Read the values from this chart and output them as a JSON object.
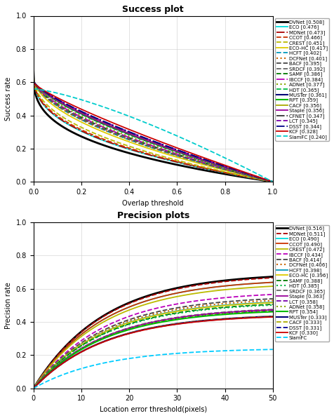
{
  "success_title": "Success plot",
  "success_xlabel": "Overlap threshold",
  "success_ylabel": "Success rate",
  "precision_title": "Precision plots",
  "precision_xlabel": "Location error threshold(pixels)",
  "precision_ylabel": "Precision rate",
  "success_trackers": [
    {
      "name": "DVNet [0.508]",
      "color": "#000000",
      "ls": "-",
      "lw": 2.0,
      "auc": 0.508
    },
    {
      "name": "ECO [0.476]",
      "color": "#00DDDD",
      "ls": "-",
      "lw": 1.3,
      "auc": 0.476
    },
    {
      "name": "MDNet [0.473]",
      "color": "#AA0000",
      "ls": "-.",
      "lw": 1.3,
      "auc": 0.473
    },
    {
      "name": "CCOT [0.466]",
      "color": "#CC3300",
      "ls": "--",
      "lw": 1.3,
      "auc": 0.466
    },
    {
      "name": "CREST [0.451]",
      "color": "#BBBB00",
      "ls": "--",
      "lw": 1.3,
      "auc": 0.451
    },
    {
      "name": "ECO-HC [0.417]",
      "color": "#DDCC00",
      "ls": "-",
      "lw": 1.3,
      "auc": 0.417
    },
    {
      "name": "HCFT [0.402]",
      "color": "#0099BB",
      "ls": "--",
      "lw": 1.3,
      "auc": 0.402
    },
    {
      "name": "DCFNet [0.401]",
      "color": "#CC6600",
      "ls": ":",
      "lw": 1.5,
      "auc": 0.401
    },
    {
      "name": "BACF [0.395]",
      "color": "#444444",
      "ls": "--",
      "lw": 1.3,
      "auc": 0.395
    },
    {
      "name": "SRDCF [0.392]",
      "color": "#666666",
      "ls": "--",
      "lw": 1.3,
      "auc": 0.392
    },
    {
      "name": "SAMF [0.386]",
      "color": "#007700",
      "ls": "--",
      "lw": 1.3,
      "auc": 0.386
    },
    {
      "name": "IBCCF [0.384]",
      "color": "#BB00BB",
      "ls": "-.",
      "lw": 1.3,
      "auc": 0.384
    },
    {
      "name": "ADNet [0.377]",
      "color": "#88AA00",
      "ls": ":",
      "lw": 1.5,
      "auc": 0.377
    },
    {
      "name": "HDT [0.365]",
      "color": "#00BB44",
      "ls": "--",
      "lw": 1.3,
      "auc": 0.365
    },
    {
      "name": "MUSTer [0.361]",
      "color": "#000077",
      "ls": "-",
      "lw": 1.5,
      "auc": 0.361
    },
    {
      "name": "RPT [0.359]",
      "color": "#00BB00",
      "ls": "-",
      "lw": 1.5,
      "auc": 0.359
    },
    {
      "name": "CACF [0.356]",
      "color": "#AAAA00",
      "ls": "-",
      "lw": 1.3,
      "auc": 0.356
    },
    {
      "name": "Staple [0.356]",
      "color": "#990099",
      "ls": "-",
      "lw": 1.3,
      "auc": 0.356
    },
    {
      "name": "CFNET [0.347]",
      "color": "#333333",
      "ls": "-.",
      "lw": 1.3,
      "auc": 0.347
    },
    {
      "name": "LCT [0.345]",
      "color": "#7700AA",
      "ls": "--",
      "lw": 1.3,
      "auc": 0.345
    },
    {
      "name": "DSST [0.344]",
      "color": "#000088",
      "ls": "-.",
      "lw": 1.3,
      "auc": 0.344
    },
    {
      "name": "KCF [0.328]",
      "color": "#CC0000",
      "ls": "-",
      "lw": 1.3,
      "auc": 0.328
    },
    {
      "name": "SiamFC [0.240]",
      "color": "#00CCCC",
      "ls": "--",
      "lw": 1.3,
      "auc": 0.24
    }
  ],
  "precision_trackers": [
    {
      "name": "DVNet [0.516]",
      "color": "#000000",
      "ls": "-",
      "lw": 2.0,
      "score": 0.516
    },
    {
      "name": "MDNet [0.511]",
      "color": "#AA0000",
      "ls": "--",
      "lw": 1.3,
      "score": 0.511
    },
    {
      "name": "ECO [0.490]",
      "color": "#00DDDD",
      "ls": "-",
      "lw": 1.3,
      "score": 0.49
    },
    {
      "name": "CCOT [0.490]",
      "color": "#CC3300",
      "ls": "-",
      "lw": 1.3,
      "score": 0.49
    },
    {
      "name": "CREST [0.472]",
      "color": "#BBBB00",
      "ls": "-",
      "lw": 1.3,
      "score": 0.472
    },
    {
      "name": "IBCCF [0.434]",
      "color": "#BB00BB",
      "ls": "--",
      "lw": 1.3,
      "score": 0.434
    },
    {
      "name": "BACF [0.414]",
      "color": "#444444",
      "ls": "--",
      "lw": 1.3,
      "score": 0.414
    },
    {
      "name": "DCFNet [0.406]",
      "color": "#CC6600",
      "ls": ":",
      "lw": 1.5,
      "score": 0.406
    },
    {
      "name": "HCFT [0.398]",
      "color": "#0099BB",
      "ls": "-",
      "lw": 1.3,
      "score": 0.398
    },
    {
      "name": "ECO-HC [0.396]",
      "color": "#DDCC00",
      "ls": "-",
      "lw": 1.3,
      "score": 0.396
    },
    {
      "name": "SAMF [0.388]",
      "color": "#007700",
      "ls": "--",
      "lw": 1.3,
      "score": 0.388
    },
    {
      "name": "HDT [0.385]",
      "color": "#00BB44",
      "ls": ":",
      "lw": 1.5,
      "score": 0.385
    },
    {
      "name": "SRDCF [0.365]",
      "color": "#666666",
      "ls": "--",
      "lw": 1.3,
      "score": 0.365
    },
    {
      "name": "Staple [0.363]",
      "color": "#990099",
      "ls": "-",
      "lw": 1.3,
      "score": 0.363
    },
    {
      "name": "LCT [0.358]",
      "color": "#7700AA",
      "ls": "--",
      "lw": 1.3,
      "score": 0.358
    },
    {
      "name": "ADNet [0.358]",
      "color": "#88AA00",
      "ls": ":",
      "lw": 1.5,
      "score": 0.358
    },
    {
      "name": "RPT [0.354]",
      "color": "#00BB00",
      "ls": "-",
      "lw": 1.5,
      "score": 0.354
    },
    {
      "name": "MUSTer [0.333]",
      "color": "#000077",
      "ls": "-",
      "lw": 1.5,
      "score": 0.333
    },
    {
      "name": "CACF [0.333]",
      "color": "#AAAA00",
      "ls": "--",
      "lw": 1.3,
      "score": 0.333
    },
    {
      "name": "DSST [0.331]",
      "color": "#000099",
      "ls": "--",
      "lw": 1.3,
      "score": 0.331
    },
    {
      "name": "KCF [0.330]",
      "color": "#CC0000",
      "ls": "-",
      "lw": 1.3,
      "score": 0.33
    },
    {
      "name": "SiamFC",
      "color": "#00CCFF",
      "ls": "--",
      "lw": 1.3,
      "score": 0.18
    }
  ]
}
